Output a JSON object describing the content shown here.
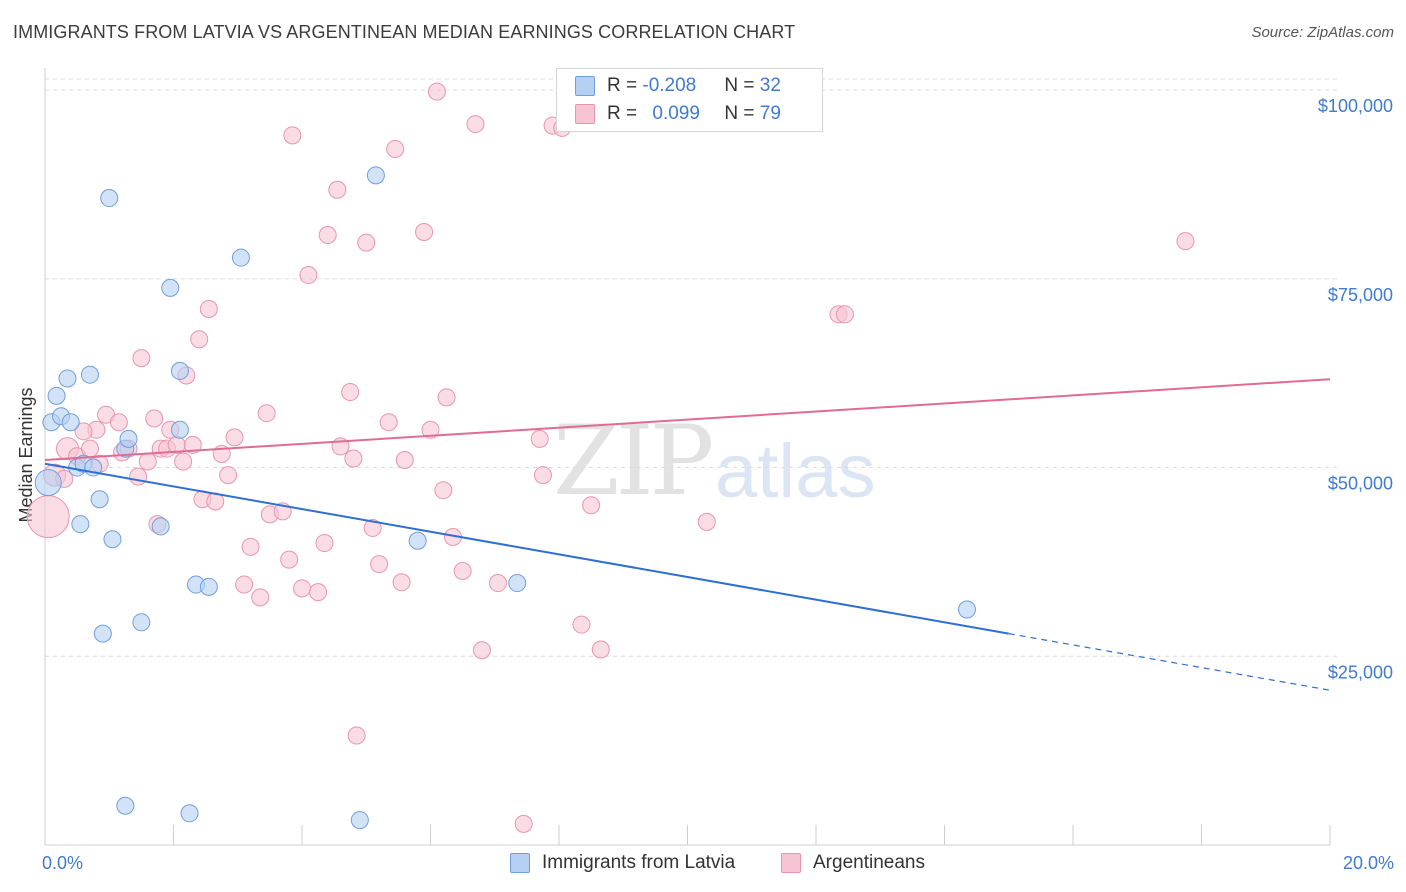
{
  "title": "IMMIGRANTS FROM LATVIA VS ARGENTINEAN MEDIAN EARNINGS CORRELATION CHART",
  "source": "Source: ZipAtlas.com",
  "watermark": {
    "zip": "ZIP",
    "atlas": "atlas"
  },
  "legend": {
    "latvia": {
      "r_label": "R = ",
      "r_value": "-0.208",
      "n_label": "N = ",
      "n_value": "32"
    },
    "argentinean": {
      "r_label": "R = ",
      "r_value": "0.099",
      "n_label": "N = ",
      "n_value": "79"
    }
  },
  "colors": {
    "latvia_fill": "#b5d0f2",
    "latvia_stroke": "#6f9fdc",
    "latvia_line": "#2f6fd0",
    "arg_fill": "#f7c4d4",
    "arg_stroke": "#e995b0",
    "arg_line": "#e06b93"
  },
  "chart_data": {
    "type": "scatter",
    "title": "IMMIGRANTS FROM LATVIA VS ARGENTINEAN MEDIAN EARNINGS CORRELATION CHART",
    "xlabel": "",
    "ylabel": "Median Earnings",
    "xlim": [
      0,
      20
    ],
    "ylim": [
      0,
      102000
    ],
    "x_tick_labels": [
      "0.0%",
      "20.0%"
    ],
    "y_ticks": [
      25000,
      50000,
      75000,
      100000
    ],
    "y_tick_labels": [
      "$25,000",
      "$50,000",
      "$75,000",
      "$100,000"
    ],
    "legend_position": "bottom",
    "series": [
      {
        "name": "Immigrants from Latvia",
        "r": -0.208,
        "n": 32,
        "points": [
          {
            "x": 0.05,
            "y": 48000,
            "s": "l"
          },
          {
            "x": 0.1,
            "y": 56000
          },
          {
            "x": 0.18,
            "y": 59500
          },
          {
            "x": 0.25,
            "y": 56800
          },
          {
            "x": 0.35,
            "y": 61800
          },
          {
            "x": 0.4,
            "y": 56000
          },
          {
            "x": 0.5,
            "y": 50000
          },
          {
            "x": 0.6,
            "y": 50500
          },
          {
            "x": 0.7,
            "y": 62300
          },
          {
            "x": 0.75,
            "y": 50000
          },
          {
            "x": 0.85,
            "y": 45800
          },
          {
            "x": 0.55,
            "y": 42500
          },
          {
            "x": 0.9,
            "y": 28000
          },
          {
            "x": 1.0,
            "y": 85700
          },
          {
            "x": 1.05,
            "y": 40500
          },
          {
            "x": 1.25,
            "y": 52500
          },
          {
            "x": 1.3,
            "y": 53800
          },
          {
            "x": 1.5,
            "y": 29500
          },
          {
            "x": 1.8,
            "y": 42200
          },
          {
            "x": 1.95,
            "y": 73800
          },
          {
            "x": 2.1,
            "y": 62800
          },
          {
            "x": 2.1,
            "y": 55000
          },
          {
            "x": 2.35,
            "y": 34500
          },
          {
            "x": 2.55,
            "y": 34200
          },
          {
            "x": 3.05,
            "y": 77800
          },
          {
            "x": 5.15,
            "y": 88700
          },
          {
            "x": 5.8,
            "y": 40300
          },
          {
            "x": 7.35,
            "y": 34700
          },
          {
            "x": 14.35,
            "y": 31200
          },
          {
            "x": 1.25,
            "y": 5200
          },
          {
            "x": 2.25,
            "y": 4200
          },
          {
            "x": 4.9,
            "y": 3300
          }
        ],
        "trend": {
          "x0": 0,
          "y0": 50500,
          "x1": 15.0,
          "y1": 28000,
          "dash_to_x": 20,
          "dash_to_y": 20500
        }
      },
      {
        "name": "Argentineans",
        "r": 0.099,
        "n": 79,
        "points": [
          {
            "x": 0.05,
            "y": 43500,
            "s": "xl"
          },
          {
            "x": 0.15,
            "y": 49000,
            "s": "m"
          },
          {
            "x": 0.3,
            "y": 48500
          },
          {
            "x": 0.35,
            "y": 52500,
            "s": "m"
          },
          {
            "x": 0.5,
            "y": 51500
          },
          {
            "x": 0.7,
            "y": 52500
          },
          {
            "x": 0.8,
            "y": 55000
          },
          {
            "x": 0.85,
            "y": 50500
          },
          {
            "x": 0.95,
            "y": 57000
          },
          {
            "x": 1.15,
            "y": 56000
          },
          {
            "x": 1.2,
            "y": 52000
          },
          {
            "x": 1.3,
            "y": 52500
          },
          {
            "x": 1.45,
            "y": 48800
          },
          {
            "x": 1.5,
            "y": 64500
          },
          {
            "x": 1.6,
            "y": 50800
          },
          {
            "x": 1.7,
            "y": 56500
          },
          {
            "x": 1.75,
            "y": 42500
          },
          {
            "x": 1.8,
            "y": 52500
          },
          {
            "x": 1.9,
            "y": 52500
          },
          {
            "x": 1.95,
            "y": 55000
          },
          {
            "x": 2.05,
            "y": 53000
          },
          {
            "x": 2.15,
            "y": 50800
          },
          {
            "x": 2.2,
            "y": 62200
          },
          {
            "x": 2.3,
            "y": 53000
          },
          {
            "x": 2.4,
            "y": 67000
          },
          {
            "x": 2.45,
            "y": 45800
          },
          {
            "x": 2.55,
            "y": 71000
          },
          {
            "x": 2.65,
            "y": 45500
          },
          {
            "x": 2.75,
            "y": 51800
          },
          {
            "x": 2.85,
            "y": 49000
          },
          {
            "x": 2.95,
            "y": 54000
          },
          {
            "x": 3.1,
            "y": 34500
          },
          {
            "x": 3.2,
            "y": 39500
          },
          {
            "x": 3.35,
            "y": 32800
          },
          {
            "x": 3.45,
            "y": 57200
          },
          {
            "x": 3.5,
            "y": 43800
          },
          {
            "x": 3.7,
            "y": 44200
          },
          {
            "x": 3.8,
            "y": 37800
          },
          {
            "x": 3.85,
            "y": 94000
          },
          {
            "x": 4.0,
            "y": 34000
          },
          {
            "x": 4.1,
            "y": 75500
          },
          {
            "x": 4.25,
            "y": 33500
          },
          {
            "x": 4.35,
            "y": 40000
          },
          {
            "x": 4.4,
            "y": 80800
          },
          {
            "x": 4.55,
            "y": 86800
          },
          {
            "x": 4.6,
            "y": 52800
          },
          {
            "x": 4.75,
            "y": 60000
          },
          {
            "x": 4.8,
            "y": 51200
          },
          {
            "x": 4.85,
            "y": 14500
          },
          {
            "x": 5.0,
            "y": 79800
          },
          {
            "x": 5.1,
            "y": 42000
          },
          {
            "x": 5.2,
            "y": 37200
          },
          {
            "x": 5.35,
            "y": 56000
          },
          {
            "x": 5.45,
            "y": 92200
          },
          {
            "x": 5.55,
            "y": 34800
          },
          {
            "x": 5.6,
            "y": 51000
          },
          {
            "x": 5.9,
            "y": 81200
          },
          {
            "x": 6.0,
            "y": 55000
          },
          {
            "x": 6.1,
            "y": 99800
          },
          {
            "x": 6.2,
            "y": 47000
          },
          {
            "x": 6.25,
            "y": 59300
          },
          {
            "x": 6.35,
            "y": 40800
          },
          {
            "x": 6.5,
            "y": 36300
          },
          {
            "x": 6.7,
            "y": 95500
          },
          {
            "x": 6.8,
            "y": 25800
          },
          {
            "x": 7.05,
            "y": 34700
          },
          {
            "x": 7.45,
            "y": 2800
          },
          {
            "x": 7.7,
            "y": 53800
          },
          {
            "x": 7.75,
            "y": 49000
          },
          {
            "x": 7.9,
            "y": 95300
          },
          {
            "x": 8.05,
            "y": 95000
          },
          {
            "x": 8.35,
            "y": 29200
          },
          {
            "x": 8.5,
            "y": 45000
          },
          {
            "x": 8.65,
            "y": 25900
          },
          {
            "x": 10.3,
            "y": 42800
          },
          {
            "x": 12.35,
            "y": 70300
          },
          {
            "x": 12.45,
            "y": 70300
          },
          {
            "x": 17.75,
            "y": 80000
          },
          {
            "x": 0.6,
            "y": 54800
          }
        ],
        "trend": {
          "x0": 0,
          "y0": 51000,
          "x1": 20,
          "y1": 61700
        }
      }
    ]
  }
}
